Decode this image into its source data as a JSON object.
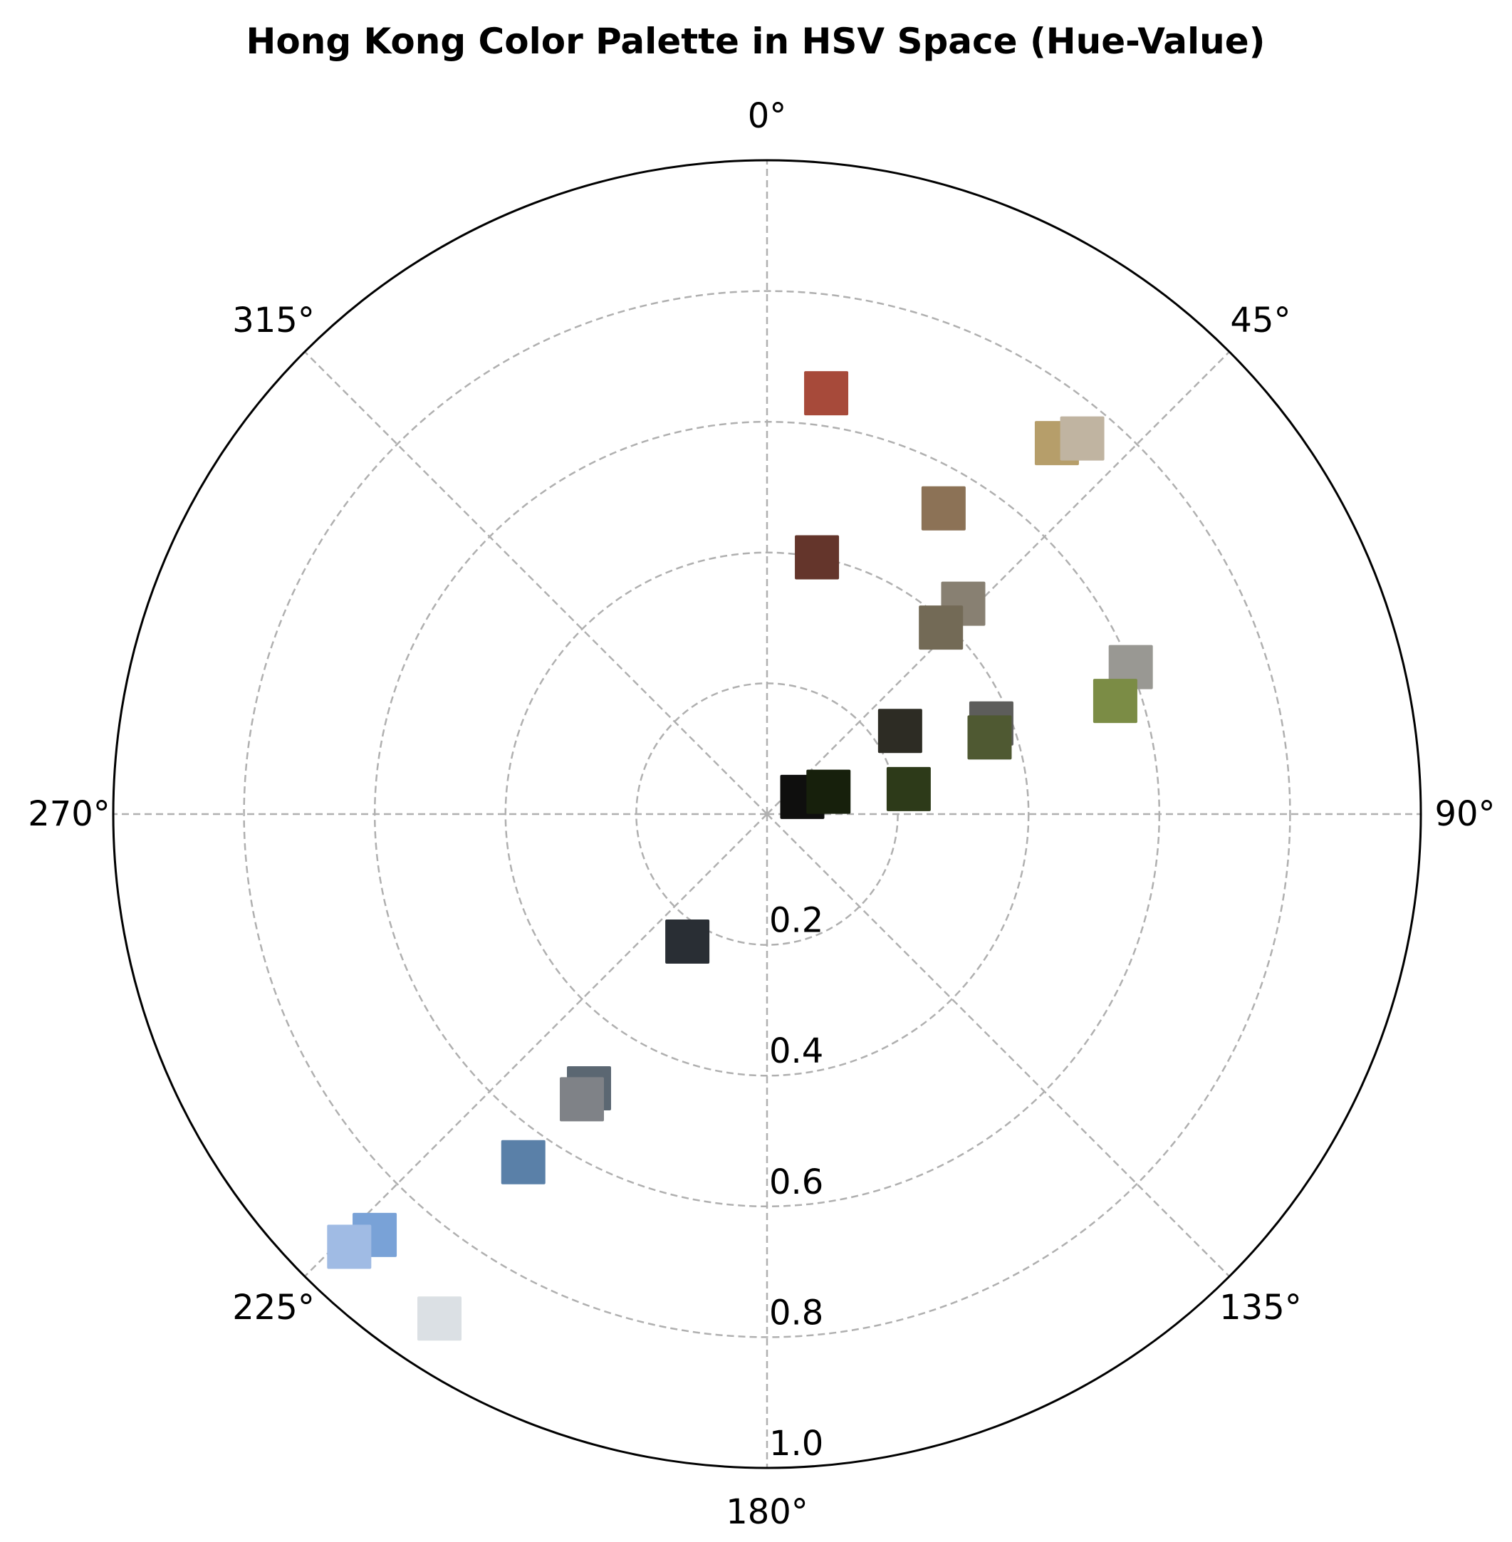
{
  "chart_data": {
    "type": "scatter",
    "projection": "polar",
    "title": "Hong Kong Color Palette in HSV Space (Hue-Value)",
    "theta_direction": "clockwise",
    "theta_zero_location": "top",
    "theta_ticks": [
      "0°",
      "45°",
      "90°",
      "135°",
      "180°",
      "225°",
      "270°",
      "315°"
    ],
    "r_ticks": [
      "0.2",
      "0.4",
      "0.6",
      "0.8",
      "1.0"
    ],
    "rlim": [
      0,
      1.0
    ],
    "grid": true,
    "marker": "square",
    "points": [
      {
        "hue": 8,
        "value": 0.65,
        "color": "#a74a3a"
      },
      {
        "hue": 11,
        "value": 0.4,
        "color": "#64352b"
      },
      {
        "hue": 30,
        "value": 0.54,
        "color": "#8c7256"
      },
      {
        "hue": 38,
        "value": 0.72,
        "color": "#b69e6a"
      },
      {
        "hue": 40,
        "value": 0.75,
        "color": "#c0b4a1"
      },
      {
        "hue": 43,
        "value": 0.44,
        "color": "#888072"
      },
      {
        "hue": 43,
        "value": 0.39,
        "color": "#736a56"
      },
      {
        "hue": 58,
        "value": 0.24,
        "color": "#2d2c24"
      },
      {
        "hue": 64,
        "value": 0.06,
        "color": "#0f0f0e"
      },
      {
        "hue": 68,
        "value": 0.37,
        "color": "#5d5d5b"
      },
      {
        "hue": 68,
        "value": 0.6,
        "color": "#999893"
      },
      {
        "hue": 70,
        "value": 0.1,
        "color": "#17200c"
      },
      {
        "hue": 71,
        "value": 0.36,
        "color": "#4f5932"
      },
      {
        "hue": 72,
        "value": 0.56,
        "color": "#7b8c45"
      },
      {
        "hue": 80,
        "value": 0.22,
        "color": "#2d3a19"
      },
      {
        "hue": 212,
        "value": 0.23,
        "color": "#292e34"
      },
      {
        "hue": 213,
        "value": 0.5,
        "color": "#5b6772"
      },
      {
        "hue": 213,
        "value": 0.52,
        "color": "#7f8287"
      },
      {
        "hue": 215,
        "value": 0.65,
        "color": "#5a80a8"
      },
      {
        "hue": 213,
        "value": 0.92,
        "color": "#dbe0e4"
      },
      {
        "hue": 223,
        "value": 0.88,
        "color": "#79a2d7"
      },
      {
        "hue": 224,
        "value": 0.92,
        "color": "#a0bbe4"
      }
    ]
  }
}
